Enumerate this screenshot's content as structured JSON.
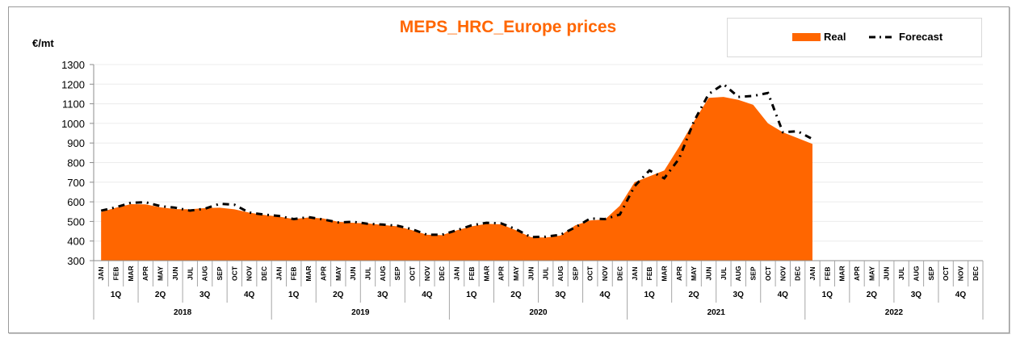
{
  "chart_data": {
    "type": "area",
    "title": "MEPS_HRC_Europe prices",
    "ylabel": "€/mt",
    "xlabel": "",
    "ylim": [
      300,
      1300
    ],
    "yticks": [
      300,
      400,
      500,
      600,
      700,
      800,
      900,
      1000,
      1100,
      1200,
      1300
    ],
    "grid": true,
    "legend_position": "top-right",
    "months": [
      "JAN",
      "FEB",
      "MAR",
      "APR",
      "MAY",
      "JUN",
      "JUL",
      "AUG",
      "SEP",
      "OCT",
      "NOV",
      "DEC"
    ],
    "quarters": [
      "1Q",
      "2Q",
      "3Q",
      "4Q"
    ],
    "years": [
      "2018",
      "2019",
      "2020",
      "2021",
      "2022"
    ],
    "series": [
      {
        "name": "Real",
        "style": "area",
        "color": "#ff6600",
        "values": [
          548,
          570,
          588,
          587,
          572,
          563,
          562,
          568,
          570,
          562,
          545,
          533,
          525,
          512,
          520,
          515,
          498,
          493,
          490,
          482,
          475,
          455,
          432,
          430,
          455,
          475,
          488,
          485,
          455,
          420,
          418,
          428,
          480,
          505,
          510,
          580,
          700,
          730,
          760,
          880,
          1010,
          1130,
          1135,
          1120,
          1095,
          1000,
          955,
          925,
          895
        ]
      },
      {
        "name": "Forecast",
        "style": "dash-dot line",
        "color": "#000000",
        "values": [
          555,
          572,
          595,
          598,
          578,
          570,
          555,
          565,
          590,
          585,
          545,
          535,
          528,
          512,
          522,
          510,
          495,
          498,
          488,
          484,
          478,
          460,
          432,
          432,
          455,
          480,
          493,
          490,
          460,
          420,
          422,
          432,
          470,
          515,
          512,
          535,
          680,
          760,
          720,
          820,
          1010,
          1150,
          1200,
          1135,
          1140,
          1155,
          955,
          960,
          920
        ]
      }
    ]
  },
  "legend": {
    "items": [
      {
        "label": "Real",
        "color": "#ff6600"
      },
      {
        "label": "Forecast",
        "color": "#000000"
      }
    ]
  }
}
